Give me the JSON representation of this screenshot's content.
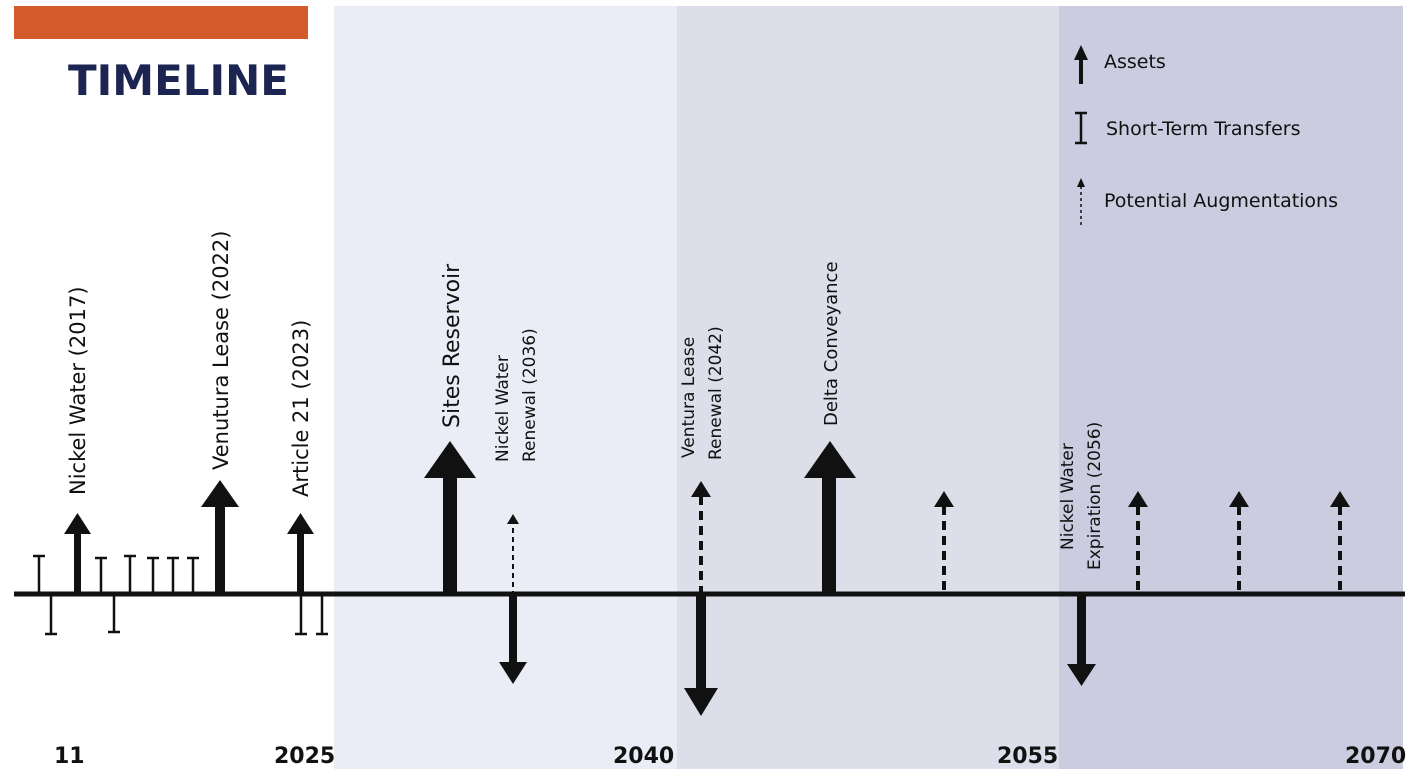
{
  "title": "TIMELINE",
  "colors": {
    "accent": "#d35a2b",
    "title": "#1c2452",
    "band_2025_2040": "#eaedf5",
    "band_2040_2055": "#dcdeea",
    "band_2055_2070": "#cbcce0",
    "ink": "#111111"
  },
  "legend": {
    "assets": "Assets",
    "short_term": "Short-Term Transfers",
    "augmentations": "Potential Augmentations"
  },
  "axis_years": {
    "start": "11",
    "y2025": "2025",
    "y2040": "2040",
    "y2055": "2055",
    "y2070": "2070"
  },
  "events": {
    "nickel_water": "Nickel Water (2017)",
    "ventura_lease": "Venutura Lease (2022)",
    "article21": "Article 21 (2023)",
    "sites_reservoir": "Sites Reservoir",
    "nickel_renewal_l1": "Nickel Water",
    "nickel_renewal_l2": "Renewal (2036)",
    "ventura_renewal_l1": "Ventura Lease",
    "ventura_renewal_l2": "Renewal (2042)",
    "delta_conveyance": "Delta Conveyance",
    "nickel_expiration_l1": "Nickel Water",
    "nickel_expiration_l2": "Expiration (2056)"
  }
}
